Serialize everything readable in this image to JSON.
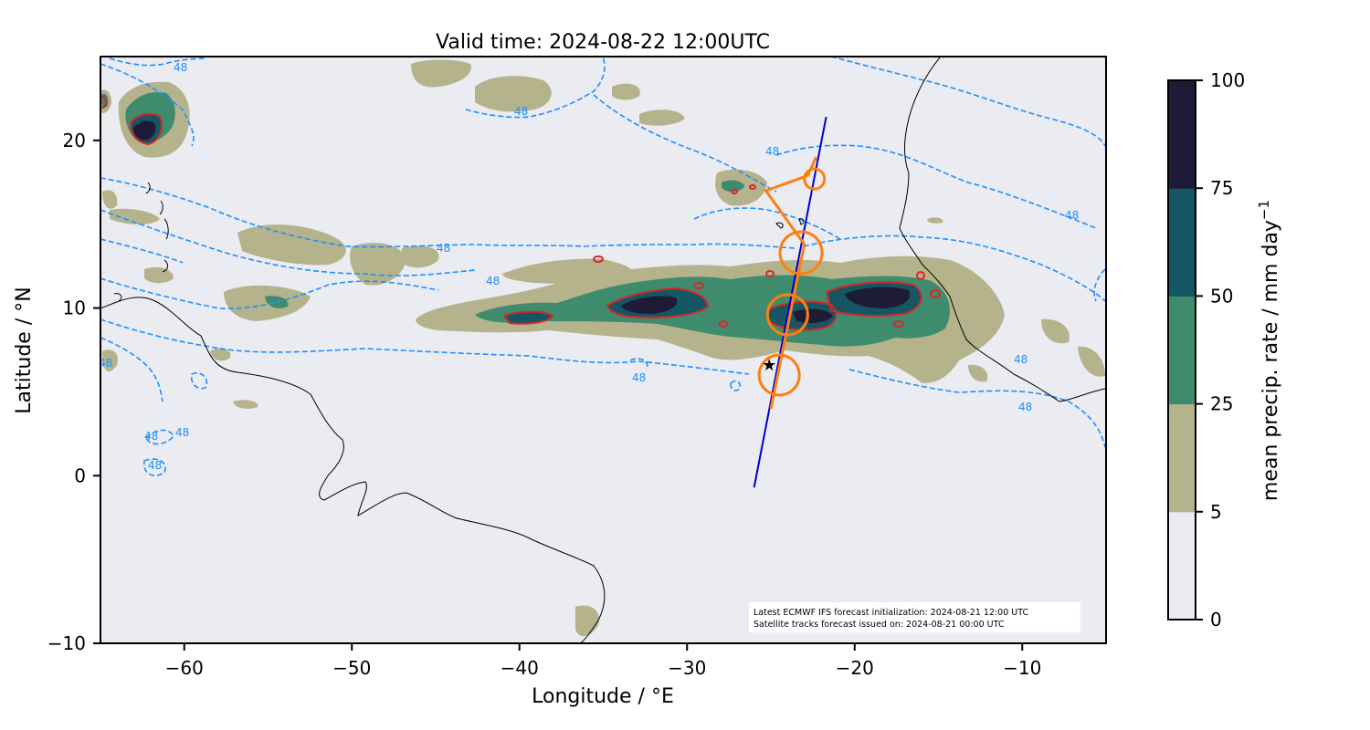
{
  "title": "Valid time: 2024-08-22 12:00UTC",
  "map": {
    "xlabel": "Longitude / °E",
    "ylabel": "Latitude / °N",
    "xlim": [
      -65,
      -5
    ],
    "ylim": [
      -10,
      25
    ],
    "xticks": [
      -60,
      -50,
      -40,
      -30,
      -20,
      -10
    ],
    "yticks": [
      -10,
      0,
      10,
      20
    ],
    "xtick_labels": [
      "−60",
      "−50",
      "−40",
      "−30",
      "−20",
      "−10"
    ],
    "ytick_labels": [
      "−10",
      "0",
      "10",
      "20"
    ],
    "background_color": "#ebebf2",
    "contour_label": "48",
    "contour_color": "#1e90ff"
  },
  "colorbar": {
    "label": "mean precip. rate / mm day",
    "label_superscript": "−1",
    "ticks": [
      "0",
      "5",
      "25",
      "50",
      "75",
      "100"
    ],
    "colors": [
      "#ebebf2",
      "#b5b38b",
      "#3e8c6d",
      "#155664",
      "#1e1b37"
    ]
  },
  "flight_track": {
    "color": "#ff7f0e",
    "waypoints_lonlat": [
      [
        -25.0,
        6.0
      ],
      [
        -23.2,
        13.3
      ],
      [
        -25.2,
        17.0
      ],
      [
        -22.4,
        17.7
      ]
    ],
    "circle_centers_lonlat": [
      [
        -24.5,
        6.0
      ],
      [
        -24.0,
        9.6
      ],
      [
        -23.2,
        13.3
      ],
      [
        -22.4,
        17.7
      ]
    ]
  },
  "satellite_track": {
    "color": "#0000cd",
    "from_lonlat": [
      -26.0,
      -0.7
    ],
    "to_lonlat": [
      -21.7,
      21.4
    ]
  },
  "star_marker_lonlat": [
    -25.1,
    6.6
  ],
  "annotation": {
    "line1": "Latest ECMWF IFS forecast initialization: 2024-08-21 12:00 UTC",
    "line2": "Satellite tracks forecast issued on: 2024-08-21 00:00 UTC"
  }
}
